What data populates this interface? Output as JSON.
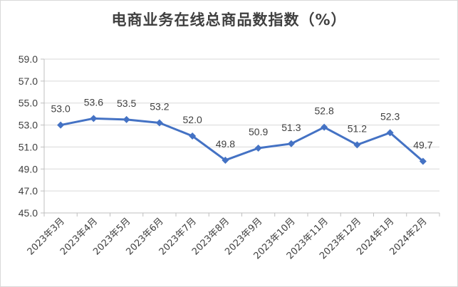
{
  "chart_data": {
    "type": "line",
    "title": "电商业务在线总商品数指数（%）",
    "xlabel": "",
    "ylabel": "",
    "categories": [
      "2023年3月",
      "2023年4月",
      "2023年5月",
      "2023年6月",
      "2023年7月",
      "2023年8月",
      "2023年9月",
      "2023年10月",
      "2023年11月",
      "2023年12月",
      "2024年1月",
      "2024年2月"
    ],
    "series": [
      {
        "values": [
          53.0,
          53.6,
          53.5,
          53.2,
          52.0,
          49.8,
          50.9,
          51.3,
          52.8,
          51.2,
          52.3,
          49.7
        ]
      }
    ],
    "data_labels": [
      "53.0",
      "53.6",
      "53.5",
      "53.2",
      "52.0",
      "49.8",
      "50.9",
      "51.3",
      "52.8",
      "51.2",
      "52.3",
      "49.7"
    ],
    "yticks": [
      45.0,
      47.0,
      49.0,
      51.0,
      53.0,
      55.0,
      57.0,
      59.0
    ],
    "ytick_labels": [
      "45.0",
      "47.0",
      "49.0",
      "51.0",
      "53.0",
      "55.0",
      "57.0",
      "59.0"
    ],
    "ylim": [
      45.0,
      59.0
    ],
    "grid": true,
    "legend": "none",
    "colors": {
      "line": "#4472c4",
      "marker": "#4472c4",
      "grid": "#d9d9d9",
      "text": "#404040"
    }
  }
}
